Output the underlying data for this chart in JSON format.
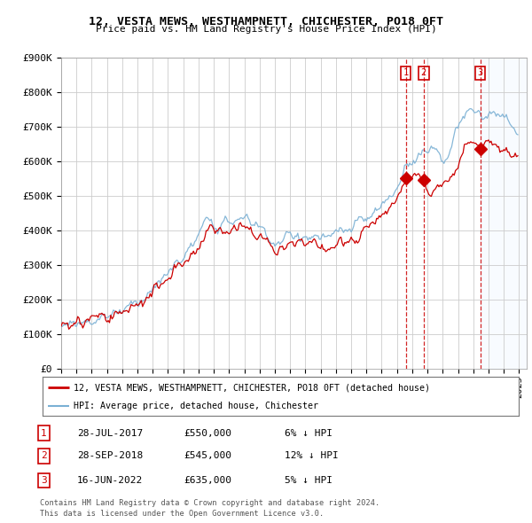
{
  "title": "12, VESTA MEWS, WESTHAMPNETT, CHICHESTER, PO18 0FT",
  "subtitle": "Price paid vs. HM Land Registry's House Price Index (HPI)",
  "ylabel_ticks": [
    "£0",
    "£100K",
    "£200K",
    "£300K",
    "£400K",
    "£500K",
    "£600K",
    "£700K",
    "£800K",
    "£900K"
  ],
  "ytick_values": [
    0,
    100000,
    200000,
    300000,
    400000,
    500000,
    600000,
    700000,
    800000,
    900000
  ],
  "ylim": [
    0,
    900000
  ],
  "xlim_start": 1995.0,
  "xlim_end": 2025.5,
  "transactions": [
    {
      "num": 1,
      "date": "28-JUL-2017",
      "price": 550000,
      "x": 2017.57
    },
    {
      "num": 2,
      "date": "28-SEP-2018",
      "price": 545000,
      "x": 2018.75
    },
    {
      "num": 3,
      "date": "16-JUN-2022",
      "price": 635000,
      "x": 2022.46
    }
  ],
  "legend_label_red": "12, VESTA MEWS, WESTHAMPNETT, CHICHESTER, PO18 0FT (detached house)",
  "legend_label_blue": "HPI: Average price, detached house, Chichester",
  "table_rows": [
    {
      "num": 1,
      "date": "28-JUL-2017",
      "price": "£550,000",
      "note": "6% ↓ HPI"
    },
    {
      "num": 2,
      "date": "28-SEP-2018",
      "price": "£545,000",
      "note": "12% ↓ HPI"
    },
    {
      "num": 3,
      "date": "16-JUN-2022",
      "price": "£635,000",
      "note": "5% ↓ HPI"
    }
  ],
  "footer": [
    "Contains HM Land Registry data © Crown copyright and database right 2024.",
    "This data is licensed under the Open Government Licence v3.0."
  ],
  "bg_color": "#ffffff",
  "grid_color": "#cccccc",
  "red_color": "#cc0000",
  "blue_color": "#7ab0d4",
  "shade_color": "#ddeeff"
}
